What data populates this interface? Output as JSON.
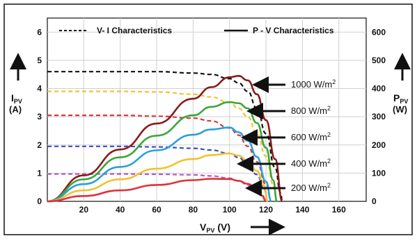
{
  "chart_data": {
    "type": "line",
    "legend": {
      "iv_label": "V- I Characteristics",
      "pv_label": "P - V Characteristics",
      "placement": "top"
    },
    "x_axis": {
      "label_main": "V",
      "label_sub": "PV",
      "label_unit": "(V)",
      "range": [
        0,
        175
      ],
      "ticks": [
        20,
        40,
        60,
        80,
        100,
        120,
        140,
        160
      ]
    },
    "y_left": {
      "label_main": "I",
      "label_sub": "PV",
      "label_unit": "(A)",
      "range": [
        0,
        6.5
      ],
      "ticks": [
        0,
        1,
        2,
        3,
        4,
        5,
        6
      ]
    },
    "y_right": {
      "label_main": "P",
      "label_sub": "PV",
      "label_unit": "(W)",
      "range": [
        0,
        650
      ],
      "ticks": [
        0,
        100,
        200,
        300,
        400,
        500,
        600
      ]
    },
    "grid": true,
    "series": [
      {
        "name": "1000 W/m2",
        "label_main": "1000 W/m",
        "label_sup": "2",
        "color": "#8b1a1a",
        "iv_color": "#111111",
        "iv": [
          [
            0,
            4.6
          ],
          [
            40,
            4.6
          ],
          [
            60,
            4.6
          ],
          [
            80,
            4.55
          ],
          [
            90,
            4.5
          ],
          [
            100,
            4.35
          ],
          [
            105,
            4.2
          ],
          [
            110,
            3.9
          ],
          [
            115,
            3.3
          ],
          [
            120,
            2.4
          ],
          [
            125,
            1.2
          ],
          [
            128,
            0.3
          ],
          [
            129,
            0
          ]
        ],
        "pv": [
          [
            0,
            0
          ],
          [
            20,
            92
          ],
          [
            40,
            184
          ],
          [
            60,
            276
          ],
          [
            80,
            364
          ],
          [
            90,
            405
          ],
          [
            100,
            440
          ],
          [
            105,
            445
          ],
          [
            110,
            429
          ],
          [
            115,
            380
          ],
          [
            120,
            288
          ],
          [
            125,
            150
          ],
          [
            129,
            0
          ]
        ]
      },
      {
        "name": "800 W/m2",
        "label_main": "800 W/m",
        "label_sup": "2",
        "color": "#3aa63a",
        "iv_color": "#f0c430",
        "iv": [
          [
            0,
            3.9
          ],
          [
            40,
            3.9
          ],
          [
            60,
            3.88
          ],
          [
            80,
            3.8
          ],
          [
            90,
            3.7
          ],
          [
            100,
            3.5
          ],
          [
            105,
            3.3
          ],
          [
            110,
            3.0
          ],
          [
            115,
            2.4
          ],
          [
            120,
            1.6
          ],
          [
            124,
            0.6
          ],
          [
            126,
            0
          ]
        ],
        "pv": [
          [
            0,
            0
          ],
          [
            20,
            78
          ],
          [
            40,
            156
          ],
          [
            60,
            233
          ],
          [
            80,
            305
          ],
          [
            90,
            335
          ],
          [
            100,
            352
          ],
          [
            105,
            348
          ],
          [
            110,
            330
          ],
          [
            115,
            278
          ],
          [
            120,
            190
          ],
          [
            124,
            75
          ],
          [
            126,
            0
          ]
        ]
      },
      {
        "name": "600 W/m2",
        "label_main": "600 W/m",
        "label_sup": "2",
        "color": "#2a9fdc",
        "iv_color": "#d43a3a",
        "iv": [
          [
            0,
            3.05
          ],
          [
            40,
            3.05
          ],
          [
            60,
            3.02
          ],
          [
            80,
            2.95
          ],
          [
            90,
            2.85
          ],
          [
            100,
            2.6
          ],
          [
            105,
            2.35
          ],
          [
            110,
            1.95
          ],
          [
            115,
            1.4
          ],
          [
            120,
            0.6
          ],
          [
            123,
            0
          ]
        ],
        "pv": [
          [
            0,
            0
          ],
          [
            20,
            61
          ],
          [
            40,
            122
          ],
          [
            60,
            181
          ],
          [
            80,
            236
          ],
          [
            90,
            255
          ],
          [
            100,
            262
          ],
          [
            105,
            245
          ],
          [
            110,
            215
          ],
          [
            115,
            158
          ],
          [
            120,
            70
          ],
          [
            123,
            0
          ]
        ]
      },
      {
        "name": "400 W/m2",
        "label_main": "400 W/m",
        "label_sup": "2",
        "color": "#f2c12e",
        "iv_color": "#3c4cc4",
        "iv": [
          [
            0,
            1.95
          ],
          [
            40,
            1.95
          ],
          [
            60,
            1.93
          ],
          [
            80,
            1.88
          ],
          [
            90,
            1.82
          ],
          [
            100,
            1.7
          ],
          [
            105,
            1.55
          ],
          [
            110,
            1.3
          ],
          [
            115,
            0.95
          ],
          [
            119,
            0.45
          ],
          [
            121,
            0
          ]
        ],
        "pv": [
          [
            0,
            0
          ],
          [
            20,
            39
          ],
          [
            40,
            78
          ],
          [
            60,
            116
          ],
          [
            80,
            150
          ],
          [
            90,
            164
          ],
          [
            100,
            170
          ],
          [
            105,
            162
          ],
          [
            110,
            143
          ],
          [
            115,
            108
          ],
          [
            119,
            55
          ],
          [
            121,
            0
          ]
        ]
      },
      {
        "name": "200 W/m2",
        "label_main": "200 W/m",
        "label_sup": "2",
        "color": "#e0303a",
        "iv_color": "#b55ac4",
        "iv": [
          [
            0,
            0.97
          ],
          [
            40,
            0.97
          ],
          [
            60,
            0.96
          ],
          [
            80,
            0.94
          ],
          [
            90,
            0.9
          ],
          [
            100,
            0.82
          ],
          [
            105,
            0.72
          ],
          [
            110,
            0.58
          ],
          [
            115,
            0.38
          ],
          [
            118,
            0.16
          ],
          [
            120,
            0
          ]
        ],
        "pv": [
          [
            0,
            0
          ],
          [
            20,
            19
          ],
          [
            40,
            39
          ],
          [
            60,
            58
          ],
          [
            80,
            75
          ],
          [
            90,
            80
          ],
          [
            100,
            79
          ],
          [
            105,
            73
          ],
          [
            110,
            62
          ],
          [
            115,
            42
          ],
          [
            118,
            20
          ],
          [
            120,
            0
          ]
        ]
      }
    ]
  }
}
